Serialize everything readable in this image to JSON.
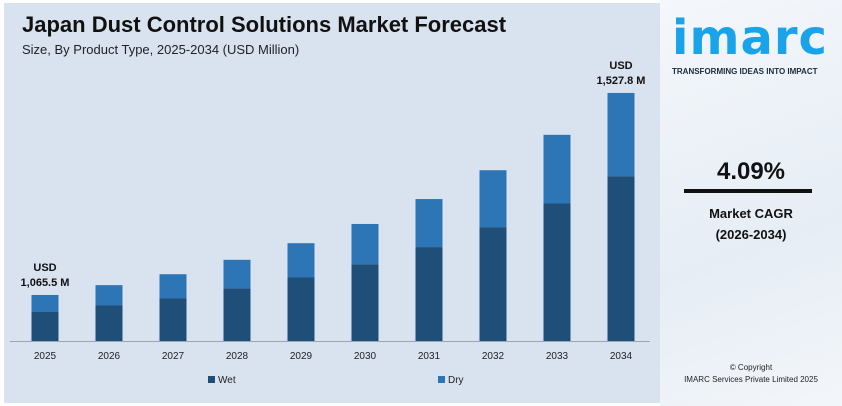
{
  "chart_data": {
    "type": "bar",
    "stacked": true,
    "title": "Japan Dust Control Solutions Market Forecast",
    "subtitle": "Size, By Product Type, 2025-2034 (USD Million)",
    "categories": [
      "2025",
      "2026",
      "2027",
      "2028",
      "2029",
      "2030",
      "2031",
      "2032",
      "2033",
      "2034"
    ],
    "totals": [
      1065.5,
      1088,
      1113,
      1146,
      1184,
      1228,
      1285,
      1351,
      1432,
      1527.8
    ],
    "series": [
      {
        "name": "Wet",
        "color": "#1f4e79",
        "values": [
          671,
          692,
          714,
          740,
          769,
          805,
          850,
          898,
          955,
          1015
        ]
      },
      {
        "name": "Dry",
        "color": "#2e75b6",
        "values": [
          394.5,
          396,
          399,
          406,
          415,
          423,
          435,
          453,
          477,
          512.8
        ]
      }
    ],
    "annotations": [
      {
        "category": "2025",
        "line1": "USD",
        "line2": "1,065.5 M"
      },
      {
        "category": "2034",
        "line1": "USD",
        "line2": "1,527.8 M"
      }
    ],
    "legend_position": "bottom",
    "grid": false
  },
  "brand": {
    "logo": "imarc",
    "tagline": "TRANSFORMING IDEAS INTO IMPACT"
  },
  "cagr": {
    "value": "4.09%",
    "label": "Market CAGR",
    "period": "(2026-2034)"
  },
  "copyright": {
    "line1": "© Copyright",
    "line2": "IMARC Services Private Limited 2025"
  }
}
